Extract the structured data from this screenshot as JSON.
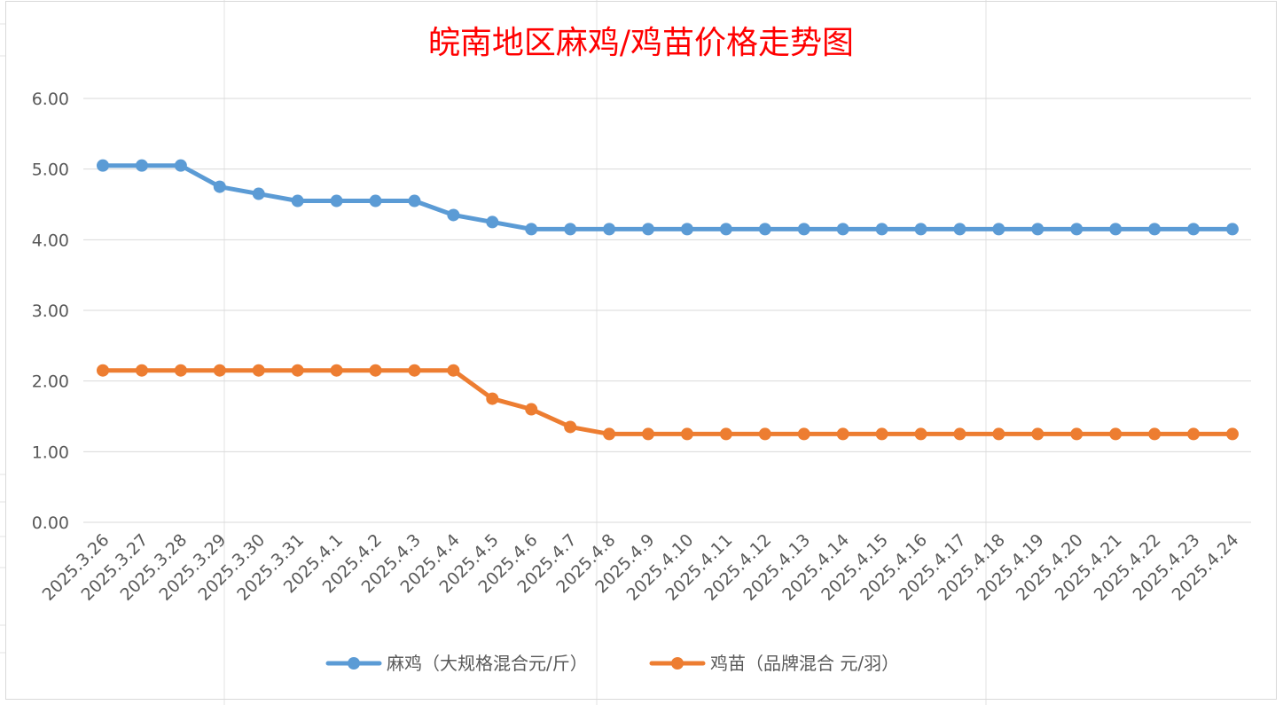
{
  "colors": {
    "title": "#ff0000",
    "series_0": "#5b9bd5",
    "series_1": "#ed7d31"
  },
  "chart_data": {
    "type": "line",
    "title": "皖南地区麻鸡/鸡苗价格走势图",
    "xlabel": "",
    "ylabel": "",
    "ylim": [
      0,
      6
    ],
    "yticks": [
      "0.00",
      "1.00",
      "2.00",
      "3.00",
      "4.00",
      "5.00",
      "6.00"
    ],
    "grid": true,
    "legend_position": "bottom",
    "categories": [
      "2025.3.26",
      "2025.3.27",
      "2025.3.28",
      "2025.3.29",
      "2025.3.30",
      "2025.3.31",
      "2025.4.1",
      "2025.4.2",
      "2025.4.3",
      "2025.4.4",
      "2025.4.5",
      "2025.4.6",
      "2025.4.7",
      "2025.4.8",
      "2025.4.9",
      "2025.4.10",
      "2025.4.11",
      "2025.4.12",
      "2025.4.13",
      "2025.4.14",
      "2025.4.15",
      "2025.4.16",
      "2025.4.17",
      "2025.4.18",
      "2025.4.19",
      "2025.4.20",
      "2025.4.21",
      "2025.4.22",
      "2025.4.23",
      "2025.4.24"
    ],
    "series": [
      {
        "name": "麻鸡（大规格混合元/斤）",
        "values": [
          5.05,
          5.05,
          5.05,
          4.75,
          4.65,
          4.55,
          4.55,
          4.55,
          4.55,
          4.35,
          4.25,
          4.15,
          4.15,
          4.15,
          4.15,
          4.15,
          4.15,
          4.15,
          4.15,
          4.15,
          4.15,
          4.15,
          4.15,
          4.15,
          4.15,
          4.15,
          4.15,
          4.15,
          4.15,
          4.15
        ]
      },
      {
        "name": "鸡苗（品牌混合 元/羽）",
        "values": [
          2.15,
          2.15,
          2.15,
          2.15,
          2.15,
          2.15,
          2.15,
          2.15,
          2.15,
          2.15,
          1.75,
          1.6,
          1.35,
          1.25,
          1.25,
          1.25,
          1.25,
          1.25,
          1.25,
          1.25,
          1.25,
          1.25,
          1.25,
          1.25,
          1.25,
          1.25,
          1.25,
          1.25,
          1.25,
          1.25
        ]
      }
    ]
  }
}
